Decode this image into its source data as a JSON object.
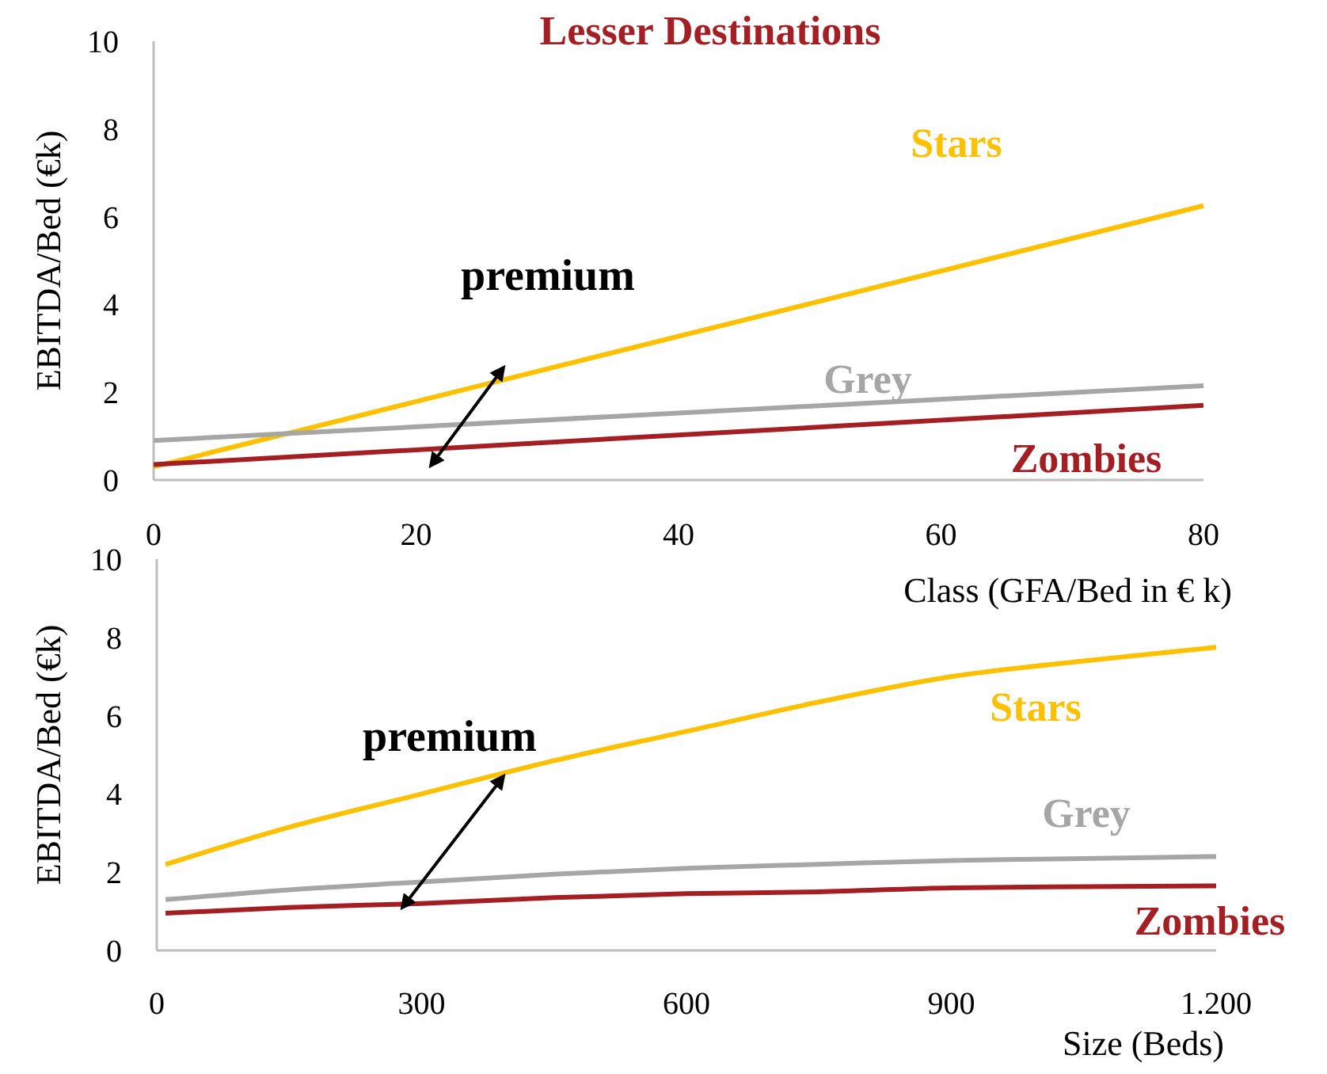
{
  "chart_data": [
    {
      "type": "line",
      "title": "Lesser Destinations",
      "xlabel": "Class  (GFA/Bed in € k)",
      "ylabel": "EBITDA/Bed (€k)",
      "xlim": [
        0,
        80
      ],
      "xticks": [
        0,
        20,
        40,
        60,
        80
      ],
      "ylim": [
        0,
        10
      ],
      "yticks": [
        0,
        2,
        4,
        6,
        8,
        10
      ],
      "grid": false,
      "marker": "none",
      "line_style": "solid",
      "annotations": [
        "premium"
      ],
      "series": [
        {
          "name": "Stars",
          "color": "#ffc000",
          "x": [
            0,
            80
          ],
          "values": [
            0.3,
            6.25
          ]
        },
        {
          "name": "Grey",
          "color": "#a6a6a6",
          "x": [
            0,
            80
          ],
          "values": [
            0.9,
            2.15
          ]
        },
        {
          "name": "Zombies",
          "color": "#a31f24",
          "x": [
            0,
            80
          ],
          "values": [
            0.35,
            1.7
          ]
        }
      ]
    },
    {
      "type": "line",
      "xlabel": "Size (Beds)",
      "ylabel": "EBITDA/Bed (€k)",
      "xlim": [
        0,
        1200
      ],
      "xticks": [
        0,
        300,
        600,
        900,
        {
          "value": 1200,
          "label": "1.200"
        }
      ],
      "ylim": [
        0,
        10
      ],
      "yticks": [
        0,
        2,
        4,
        6,
        8,
        10
      ],
      "grid": false,
      "marker": "none",
      "line_style": "solid",
      "annotations": [
        "premium"
      ],
      "series": [
        {
          "name": "Stars",
          "color": "#ffc000",
          "x": [
            10,
            150,
            300,
            450,
            600,
            750,
            900,
            1050,
            1200
          ],
          "values": [
            2.2,
            3.15,
            4.0,
            4.85,
            5.6,
            6.35,
            7.0,
            7.4,
            7.75
          ]
        },
        {
          "name": "Grey",
          "color": "#a6a6a6",
          "x": [
            10,
            150,
            300,
            450,
            600,
            750,
            900,
            1050,
            1200
          ],
          "values": [
            1.3,
            1.55,
            1.75,
            1.95,
            2.1,
            2.2,
            2.3,
            2.35,
            2.4
          ]
        },
        {
          "name": "Zombies",
          "color": "#a31f24",
          "x": [
            10,
            150,
            300,
            450,
            600,
            750,
            900,
            1050,
            1200
          ],
          "values": [
            0.95,
            1.1,
            1.2,
            1.35,
            1.45,
            1.5,
            1.6,
            1.63,
            1.65
          ]
        }
      ]
    }
  ]
}
